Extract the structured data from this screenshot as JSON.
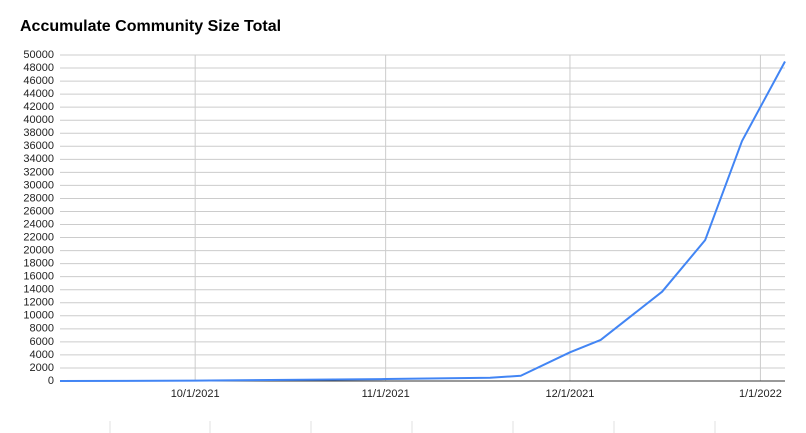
{
  "chart_data": {
    "type": "line",
    "title": "Accumulate Community Size Total",
    "x": [
      "9/9/2021",
      "10/1/2021",
      "11/1/2021",
      "11/18/2021",
      "11/23/2021",
      "12/1/2021",
      "12/6/2021",
      "12/16/2021",
      "12/23/2021",
      "12/29/2021",
      "1/5/2022"
    ],
    "values": [
      0,
      50,
      300,
      500,
      800,
      4400,
      6300,
      13700,
      21600,
      36800,
      49000
    ],
    "color": "#4285f4",
    "xlim": [
      "9/9/2021",
      "1/5/2022"
    ],
    "xticks": [
      "10/1/2021",
      "11/1/2021",
      "12/1/2021",
      "1/1/2022"
    ],
    "ylim": [
      0,
      50000
    ],
    "yticks": [
      0,
      2000,
      4000,
      6000,
      8000,
      10000,
      12000,
      14000,
      16000,
      18000,
      20000,
      22000,
      24000,
      26000,
      28000,
      30000,
      32000,
      34000,
      36000,
      38000,
      40000,
      42000,
      44000,
      46000,
      48000,
      50000
    ],
    "grid": true
  }
}
